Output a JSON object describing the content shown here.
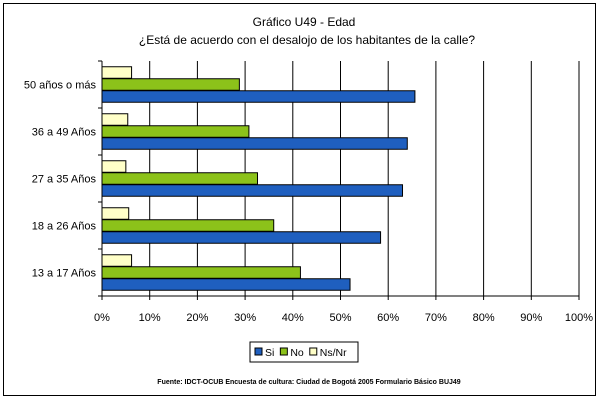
{
  "chart_data": {
    "type": "bar",
    "orientation": "horizontal",
    "title": "Gráfico U49 - Edad",
    "subtitle": "¿Está de acuerdo con el desalojo de los habitantes de la calle?",
    "categories": [
      "13 a 17 Años",
      "18 a 26 Años",
      "27 a 35 Años",
      "36 a 49 Años",
      "50 años o más"
    ],
    "series": [
      {
        "name": "Si",
        "color": "#1f5fbf",
        "values": [
          52,
          58.4,
          63,
          64,
          65.6
        ]
      },
      {
        "name": "No",
        "color": "#8cc21a",
        "values": [
          41.6,
          36,
          32.6,
          30.8,
          28.8
        ]
      },
      {
        "name": "Ns/Nr",
        "color": "#ffffc8",
        "values": [
          6.2,
          5.6,
          5,
          5.4,
          6.2
        ]
      }
    ],
    "xlim": [
      0,
      100
    ],
    "x_ticks": [
      "0%",
      "10%",
      "20%",
      "30%",
      "40%",
      "50%",
      "60%",
      "70%",
      "80%",
      "90%",
      "100%"
    ],
    "grid": true,
    "legend_position": "bottom",
    "source": "Fuente: IDCT-OCUB Encuesta de cultura: Ciudad de Bogotá 2005 Formulario Básico BUJ49"
  }
}
